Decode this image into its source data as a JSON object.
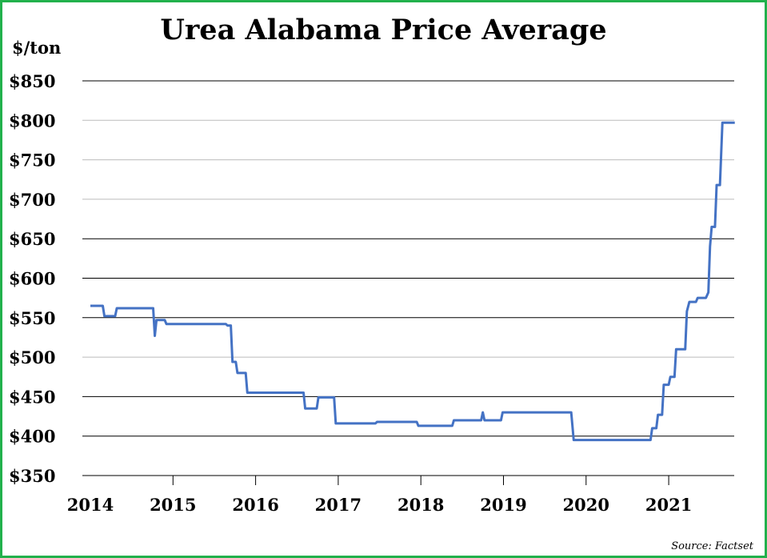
{
  "chart_data": {
    "type": "line",
    "title": "Urea Alabama Price Average",
    "ylabel": "$/ton",
    "xlabel": "",
    "source": "Source: Factset",
    "ylim": [
      350,
      850
    ],
    "xlim": [
      2014,
      2021.8
    ],
    "yticks": [
      350,
      400,
      450,
      500,
      550,
      600,
      650,
      700,
      750,
      800,
      850
    ],
    "ytick_labels": [
      "$350",
      "$400",
      "$450",
      "$500",
      "$550",
      "$600",
      "$650",
      "$700",
      "$750",
      "$800",
      "$850"
    ],
    "xticks": [
      2014,
      2015,
      2016,
      2017,
      2018,
      2019,
      2020,
      2021
    ],
    "xtick_labels": [
      "2014",
      "2015",
      "2016",
      "2017",
      "2018",
      "2019",
      "2020",
      "2021"
    ],
    "grid": true,
    "series": [
      {
        "name": "Urea Alabama Price Average",
        "color": "#4472c4",
        "points": [
          [
            2014.0,
            565
          ],
          [
            2014.15,
            565
          ],
          [
            2014.17,
            552
          ],
          [
            2014.3,
            552
          ],
          [
            2014.32,
            562
          ],
          [
            2014.76,
            562
          ],
          [
            2014.78,
            527
          ],
          [
            2014.8,
            547
          ],
          [
            2014.9,
            547
          ],
          [
            2014.92,
            542
          ],
          [
            2015.64,
            542
          ],
          [
            2015.66,
            540
          ],
          [
            2015.7,
            540
          ],
          [
            2015.72,
            494
          ],
          [
            2015.76,
            494
          ],
          [
            2015.78,
            480
          ],
          [
            2015.88,
            480
          ],
          [
            2015.9,
            455
          ],
          [
            2016.58,
            455
          ],
          [
            2016.6,
            435
          ],
          [
            2016.74,
            435
          ],
          [
            2016.76,
            449
          ],
          [
            2016.95,
            449
          ],
          [
            2016.97,
            416
          ],
          [
            2017.45,
            416
          ],
          [
            2017.47,
            418
          ],
          [
            2017.95,
            418
          ],
          [
            2017.97,
            413
          ],
          [
            2018.38,
            413
          ],
          [
            2018.4,
            420
          ],
          [
            2018.73,
            420
          ],
          [
            2018.75,
            430
          ],
          [
            2018.77,
            420
          ],
          [
            2018.97,
            420
          ],
          [
            2018.99,
            430
          ],
          [
            2019.82,
            430
          ],
          [
            2019.85,
            395
          ],
          [
            2020.78,
            395
          ],
          [
            2020.8,
            410
          ],
          [
            2020.85,
            410
          ],
          [
            2020.87,
            427
          ],
          [
            2020.92,
            427
          ],
          [
            2020.94,
            465
          ],
          [
            2021.0,
            465
          ],
          [
            2021.02,
            475
          ],
          [
            2021.07,
            475
          ],
          [
            2021.09,
            510
          ],
          [
            2021.2,
            510
          ],
          [
            2021.22,
            558
          ],
          [
            2021.25,
            570
          ],
          [
            2021.33,
            570
          ],
          [
            2021.35,
            575
          ],
          [
            2021.45,
            575
          ],
          [
            2021.48,
            582
          ],
          [
            2021.5,
            640
          ],
          [
            2021.52,
            665
          ],
          [
            2021.56,
            665
          ],
          [
            2021.58,
            718
          ],
          [
            2021.62,
            718
          ],
          [
            2021.65,
            797
          ],
          [
            2021.8,
            797
          ]
        ]
      }
    ]
  }
}
